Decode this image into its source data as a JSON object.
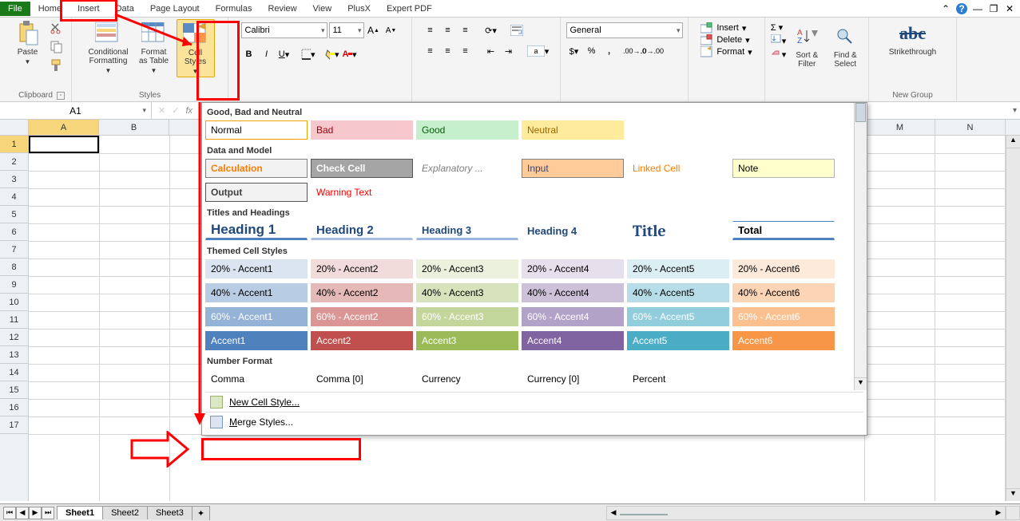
{
  "tabs": {
    "file": "File",
    "home": "Home",
    "insert": "Insert",
    "data": "Data",
    "pagelayout": "Page Layout",
    "formulas": "Formulas",
    "review": "Review",
    "view": "View",
    "plusx": "PlusX",
    "expertpdf": "Expert PDF"
  },
  "ribbon": {
    "clipboard": {
      "paste": "Paste",
      "label": "Clipboard"
    },
    "styles": {
      "cond": "Conditional\nFormatting",
      "fmtTable": "Format\nas Table",
      "cellStyles": "Cell\nStyles",
      "label": "Styles"
    },
    "font": {
      "name": "Calibri",
      "size": "11"
    },
    "number": {
      "format": "General"
    },
    "cells": {
      "insert": "Insert",
      "delete": "Delete",
      "format": "Format"
    },
    "editing": {
      "sort": "Sort &\nFilter",
      "find": "Find &\nSelect"
    },
    "newgroup": {
      "strike": "Strikethrough",
      "label": "New Group"
    }
  },
  "namebox": "A1",
  "columns_left": [
    "A",
    "B"
  ],
  "columns_right": [
    "M",
    "N"
  ],
  "rows": [
    1,
    2,
    3,
    4,
    5,
    6,
    7,
    8,
    9,
    10,
    11,
    12,
    13,
    14,
    15,
    16,
    17
  ],
  "sheets": {
    "s1": "Sheet1",
    "s2": "Sheet2",
    "s3": "Sheet3"
  },
  "panel": {
    "sect1": "Good, Bad and Neutral",
    "row1": [
      {
        "t": "Normal",
        "bg": "#ffffff",
        "fg": "#000000",
        "bd": "#f2a100"
      },
      {
        "t": "Bad",
        "bg": "#f7c7ce",
        "fg": "#9c0006"
      },
      {
        "t": "Good",
        "bg": "#c6efce",
        "fg": "#006100"
      },
      {
        "t": "Neutral",
        "bg": "#ffeb9c",
        "fg": "#9c6500"
      }
    ],
    "sect2": "Data and Model",
    "row2": [
      {
        "t": "Calculation",
        "bg": "#f2f2f2",
        "fg": "#fa7d00",
        "bd": "#808080",
        "bold": true
      },
      {
        "t": "Check Cell",
        "bg": "#a5a5a5",
        "fg": "#ffffff",
        "bd": "#555",
        "bold": true
      },
      {
        "t": "Explanatory ...",
        "bg": "#ffffff",
        "fg": "#7f7f7f",
        "it": true
      },
      {
        "t": "Input",
        "bg": "#ffcc99",
        "fg": "#3f3f76",
        "bd": "#808080"
      },
      {
        "t": "Linked Cell",
        "bg": "#ffffff",
        "fg": "#fa7d00"
      },
      {
        "t": "Note",
        "bg": "#ffffcc",
        "fg": "#000000",
        "bd": "#b2b2b2"
      }
    ],
    "row2b": [
      {
        "t": "Output",
        "bg": "#f2f2f2",
        "fg": "#3f3f3f",
        "bd": "#555",
        "bold": true
      },
      {
        "t": "Warning Text",
        "bg": "#ffffff",
        "fg": "#ff0000"
      }
    ],
    "sect3": "Titles and Headings",
    "row3": [
      {
        "t": "Heading 1",
        "bg": "#fff",
        "fg": "#1f497d",
        "ub": "#4f81bd",
        "fs": 17,
        "bold": true
      },
      {
        "t": "Heading 2",
        "bg": "#fff",
        "fg": "#1f497d",
        "ub": "#a6bfe0",
        "fs": 15,
        "bold": true
      },
      {
        "t": "Heading 3",
        "bg": "#fff",
        "fg": "#1f497d",
        "ub": "#9bb7df",
        "fs": 13,
        "bold": true
      },
      {
        "t": "Heading 4",
        "bg": "#fff",
        "fg": "#1f497d",
        "fs": 13,
        "bold": true
      },
      {
        "t": "Title",
        "bg": "#fff",
        "fg": "#1f497d",
        "fs": 20,
        "bold": true,
        "serif": true
      },
      {
        "t": "Total",
        "bg": "#fff",
        "fg": "#000",
        "ub": "#4f81bd",
        "tb": "#4f81bd",
        "fs": 13,
        "bold": true
      }
    ],
    "sect4": "Themed Cell Styles",
    "accents": {
      "cols": [
        "Accent1",
        "Accent2",
        "Accent3",
        "Accent4",
        "Accent5",
        "Accent6"
      ],
      "base": [
        "#4f81bd",
        "#c0504d",
        "#9bbb59",
        "#8064a2",
        "#4bacc6",
        "#f79646"
      ],
      "p20": [
        "#dbe5f1",
        "#f2dcdb",
        "#ebf1dd",
        "#e5e0ec",
        "#dbeef3",
        "#fdeada"
      ],
      "p40": [
        "#b8cce4",
        "#e5b9b7",
        "#d7e3bc",
        "#ccc1d9",
        "#b7dde8",
        "#fbd5b5"
      ],
      "p60": [
        "#95b3d7",
        "#d99694",
        "#c3d69b",
        "#b2a2c7",
        "#92cddc",
        "#fac08f"
      ],
      "labels20": [
        "20% - Accent1",
        "20% - Accent2",
        "20% - Accent3",
        "20% - Accent4",
        "20% - Accent5",
        "20% - Accent6"
      ],
      "labels40": [
        "40% - Accent1",
        "40% - Accent2",
        "40% - Accent3",
        "40% - Accent4",
        "40% - Accent5",
        "40% - Accent6"
      ],
      "labels60": [
        "60% - Accent1",
        "60% - Accent2",
        "60% - Accent3",
        "60% - Accent4",
        "60% - Accent5",
        "60% - Accent6"
      ]
    },
    "sect5": "Number Format",
    "row5": [
      "Comma",
      "Comma [0]",
      "Currency",
      "Currency [0]",
      "Percent"
    ],
    "newStyle": "New Cell Style...",
    "merge": "Merge Styles..."
  }
}
